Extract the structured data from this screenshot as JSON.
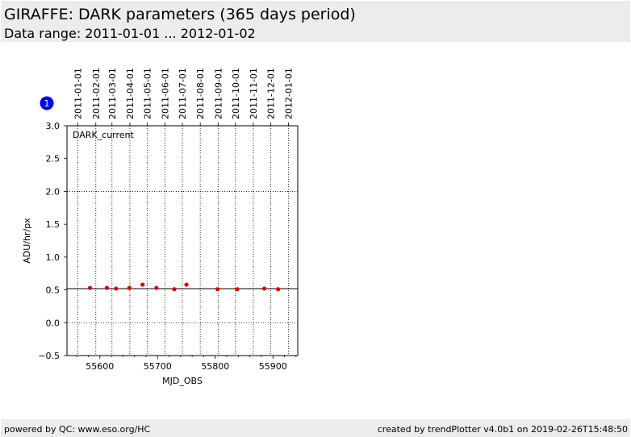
{
  "header": {
    "title": "GIRAFFE: DARK parameters (365 days period)",
    "subtitle": "Data range: 2011-01-01 ... 2012-01-02"
  },
  "footer": {
    "left": "powered by QC: www.eso.org/HC",
    "right": "created by trendPlotter v4.0b1 on 2019-02-26T15:48:50"
  },
  "panel_badge": "1",
  "chart_data": {
    "type": "scatter",
    "annotation": "DARK_current",
    "xlabel": "MJD_OBS",
    "ylabel": "ADU/hr/px",
    "xlim": [
      55543,
      55943
    ],
    "ylim": [
      -0.5,
      3.0
    ],
    "x_ticks": [
      55600,
      55700,
      55800,
      55900
    ],
    "x_minor_step": 20,
    "y_ticks": [
      -0.5,
      0.0,
      0.5,
      1.0,
      1.5,
      2.0,
      2.5,
      3.0
    ],
    "y_grid": [
      0.0,
      2.0
    ],
    "reference_line": 0.52,
    "date_ticks": [
      {
        "label": "2011-01-01",
        "mjd": 55562
      },
      {
        "label": "2011-02-01",
        "mjd": 55593
      },
      {
        "label": "2011-03-01",
        "mjd": 55621
      },
      {
        "label": "2011-04-01",
        "mjd": 55652
      },
      {
        "label": "2011-05-01",
        "mjd": 55682
      },
      {
        "label": "2011-06-01",
        "mjd": 55713
      },
      {
        "label": "2011-07-01",
        "mjd": 55743
      },
      {
        "label": "2011-08-01",
        "mjd": 55774
      },
      {
        "label": "2011-09-01",
        "mjd": 55805
      },
      {
        "label": "2011-10-01",
        "mjd": 55835
      },
      {
        "label": "2011-11-01",
        "mjd": 55866
      },
      {
        "label": "2011-12-01",
        "mjd": 55896
      },
      {
        "label": "2012-01-01",
        "mjd": 55927
      }
    ],
    "series": [
      {
        "color": "#e00000",
        "points": [
          {
            "x": 55583,
            "y": 0.53
          },
          {
            "x": 55612,
            "y": 0.53
          },
          {
            "x": 55628,
            "y": 0.52
          },
          {
            "x": 55651,
            "y": 0.53
          },
          {
            "x": 55674,
            "y": 0.58
          },
          {
            "x": 55698,
            "y": 0.53
          },
          {
            "x": 55729,
            "y": 0.51
          },
          {
            "x": 55750,
            "y": 0.58
          },
          {
            "x": 55804,
            "y": 0.51
          },
          {
            "x": 55838,
            "y": 0.51
          },
          {
            "x": 55885,
            "y": 0.52
          },
          {
            "x": 55909,
            "y": 0.51
          }
        ]
      }
    ]
  }
}
